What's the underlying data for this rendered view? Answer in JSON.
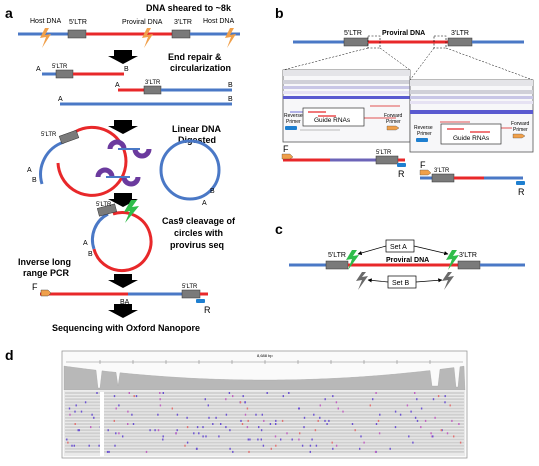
{
  "panels": {
    "a": {
      "letter": "a",
      "top_note": "DNA sheared to ~8k",
      "host_dna_left": "Host DNA",
      "ltr5": "5'LTR",
      "proviral_dna": "Proviral DNA",
      "ltr3": "3'LTR",
      "host_dna_right": "Host DNA",
      "step1_line1": "End repair &",
      "step1_line2": "circularization",
      "end_A": "A",
      "end_B": "B",
      "step2_line1": "Linear DNA",
      "step2_line2": "Digested",
      "step3_line1": "Cas9 cleavage of",
      "step3_line2": "circles with",
      "step3_line3": "provirus seq",
      "pcr_line1": "Inverse long",
      "pcr_line2": "range PCR",
      "primer_F": "F",
      "primer_R": "R",
      "junction_BA": "BA",
      "final_step": "Sequencing with Oxford Nanopore"
    },
    "b": {
      "letter": "b",
      "ltr5": "5'LTR",
      "proviral_dna": "Proviral DNA",
      "ltr3": "3'LTR",
      "reverse_primer_line1": "Reverse",
      "reverse_primer_line2": "Primer",
      "guide_rnas": "Guide RNAs",
      "forward_primer_line1": "Forward",
      "forward_primer_line2": "Primer",
      "primer_F": "F",
      "primer_R": "R"
    },
    "c": {
      "letter": "c",
      "ltr5": "5'LTR",
      "proviral_dna": "Proviral DNA",
      "ltr3": "3'LTR",
      "set_a": "Set A",
      "set_b": "Set B"
    },
    "d": {
      "letter": "d",
      "scale_label": "8,688 bp"
    }
  },
  "colors": {
    "host": "#4a78c6",
    "proviral": "#e8282a",
    "ltr": "#7a7a7a",
    "lightning": "#f0a04b",
    "cas9": "#2ebd4a",
    "digest": "#6b3a9e",
    "primer_orange": "#f0a04b",
    "primer_blue": "#1e7fd0",
    "coverage": "#b8b8b8"
  }
}
